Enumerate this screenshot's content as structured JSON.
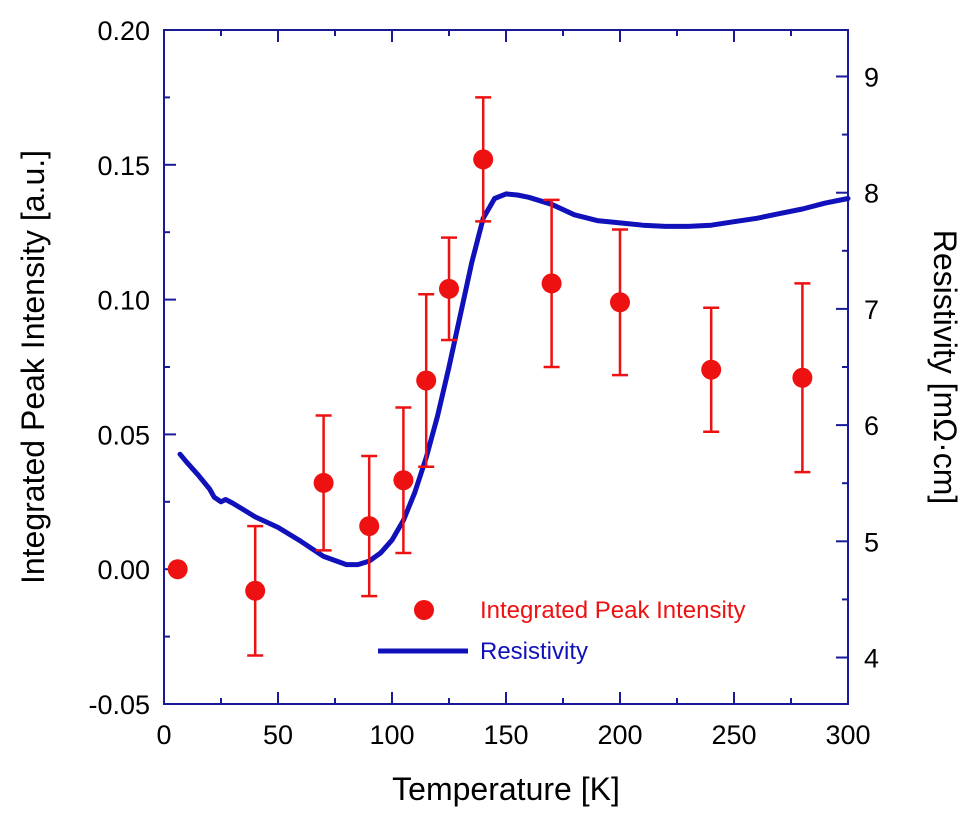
{
  "chart_data": {
    "type": "scatter",
    "xlabel": "Temperature [K]",
    "ylabel": "Integrated Peak Intensity [a.u.]",
    "y2label": "Resistivity [mΩ·cm]",
    "xlim": [
      0,
      300
    ],
    "ylim": [
      -0.05,
      0.2
    ],
    "y2lim": [
      3.6,
      9.4
    ],
    "x_ticks": [
      "0",
      "50",
      "100",
      "150",
      "200",
      "250",
      "300"
    ],
    "y_ticks": [
      "-0.05",
      "0.00",
      "0.05",
      "0.10",
      "0.15",
      "0.20"
    ],
    "y2_ticks": [
      "4",
      "5",
      "6",
      "7",
      "8",
      "9"
    ],
    "grid": false,
    "legend_position": "bottom-right",
    "colors": {
      "intensity": "#ee1111",
      "resistivity": "#1111bb",
      "axis": "#1a1a99"
    },
    "series": [
      {
        "name": "Integrated Peak Intensity",
        "kind": "scatter-errorbar",
        "axis": "left",
        "x": [
          6,
          40,
          70,
          90,
          105,
          115,
          125,
          140,
          170,
          200,
          240,
          280
        ],
        "y": [
          0.0,
          -0.008,
          0.032,
          0.016,
          0.033,
          0.07,
          0.104,
          0.152,
          0.106,
          0.099,
          0.074,
          0.071
        ],
        "yerr": [
          0.0,
          0.024,
          0.025,
          0.026,
          0.027,
          0.032,
          0.019,
          0.023,
          0.031,
          0.027,
          0.023,
          0.035
        ]
      },
      {
        "name": "Resistivity",
        "kind": "line",
        "axis": "right",
        "x": [
          7,
          10,
          15,
          20,
          22,
          25,
          27,
          30,
          35,
          40,
          50,
          60,
          70,
          80,
          85,
          90,
          95,
          100,
          105,
          110,
          115,
          120,
          125,
          130,
          135,
          140,
          145,
          150,
          155,
          160,
          170,
          180,
          190,
          200,
          210,
          220,
          230,
          240,
          250,
          260,
          270,
          280,
          290,
          300
        ],
        "y": [
          5.75,
          5.68,
          5.57,
          5.45,
          5.38,
          5.34,
          5.36,
          5.33,
          5.27,
          5.21,
          5.12,
          5.0,
          4.87,
          4.8,
          4.8,
          4.83,
          4.9,
          5.01,
          5.18,
          5.42,
          5.72,
          6.08,
          6.5,
          6.95,
          7.4,
          7.78,
          7.95,
          7.99,
          7.98,
          7.96,
          7.9,
          7.81,
          7.76,
          7.74,
          7.72,
          7.71,
          7.71,
          7.72,
          7.75,
          7.78,
          7.82,
          7.86,
          7.91,
          7.95
        ]
      }
    ]
  }
}
